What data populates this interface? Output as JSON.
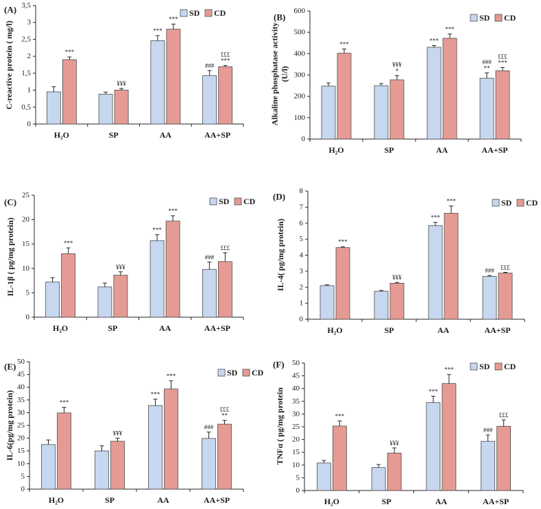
{
  "colors": {
    "sd": "#c6d7ef",
    "cd": "#e59b94",
    "stroke": "#4a4a4a"
  },
  "legend": {
    "sd": "SD",
    "cd": "CD"
  },
  "chart_data": [
    {
      "type": "bar",
      "panel": "(A)",
      "ylabel": "C-reactive protein ( mg/l)",
      "categories": [
        "H₂O",
        "SP",
        "AA",
        "AA+SP"
      ],
      "ylim": [
        0,
        3.5
      ],
      "yticks": [
        "0",
        "0,5",
        "1",
        "1,5",
        "2",
        "2,5",
        "3",
        "3,5"
      ],
      "series": [
        {
          "name": "SD",
          "values": [
            0.95,
            0.88,
            2.46,
            1.43
          ],
          "errors": [
            0.15,
            0.06,
            0.15,
            0.15
          ],
          "sig": [
            "",
            "",
            "***",
            "###"
          ]
        },
        {
          "name": "CD",
          "values": [
            1.9,
            1.0,
            2.8,
            1.69
          ],
          "errors": [
            0.08,
            0.05,
            0.15,
            0.04
          ],
          "sig": [
            "***",
            "¥¥¥",
            "***",
            "£££\n***"
          ]
        }
      ]
    },
    {
      "type": "bar",
      "panel": "(B)",
      "ylabel": "Alkaline phosphatase activity\n(U/l)",
      "categories": [
        "H₂O",
        "SP",
        "AA",
        "AA+SP"
      ],
      "ylim": [
        0,
        600
      ],
      "yticks": [
        "0",
        "100",
        "200",
        "300",
        "400",
        "500",
        "600"
      ],
      "series": [
        {
          "name": "SD",
          "values": [
            248,
            250,
            430,
            285
          ],
          "errors": [
            15,
            10,
            8,
            25
          ],
          "sig": [
            "",
            "",
            "***",
            "###\n**"
          ]
        },
        {
          "name": "CD",
          "values": [
            402,
            277,
            472,
            320
          ],
          "errors": [
            20,
            20,
            20,
            15
          ],
          "sig": [
            "***",
            "¥¥¥\n*",
            "***",
            "£££\n***"
          ]
        }
      ]
    },
    {
      "type": "bar",
      "panel": "(C)",
      "ylabel": "IL-1β ( pg/mg protein)",
      "categories": [
        "H₂O",
        "SP",
        "AA",
        "AA+SP"
      ],
      "ylim": [
        0,
        25
      ],
      "yticks": [
        "0",
        "5",
        "10",
        "15",
        "20",
        "25"
      ],
      "series": [
        {
          "name": "SD",
          "values": [
            7.2,
            6.2,
            15.7,
            9.8
          ],
          "errors": [
            0.9,
            0.8,
            1.2,
            1.5
          ],
          "sig": [
            "",
            "",
            "***",
            "###"
          ]
        },
        {
          "name": "CD",
          "values": [
            13.0,
            8.6,
            19.7,
            11.4
          ],
          "errors": [
            1.2,
            0.7,
            1.1,
            1.8
          ],
          "sig": [
            "***",
            "¥¥¥",
            "***",
            "£££"
          ]
        }
      ]
    },
    {
      "type": "bar",
      "panel": "(D)",
      "ylabel": "IL-4( pg/mg protein)",
      "categories": [
        "H₂O",
        "SP",
        "AA",
        "AA+SP"
      ],
      "ylim": [
        0,
        8
      ],
      "yticks": [
        "0",
        "1",
        "2",
        "3",
        "4",
        "5",
        "6",
        "7",
        "8"
      ],
      "series": [
        {
          "name": "SD",
          "values": [
            2.1,
            1.75,
            5.85,
            2.68
          ],
          "errors": [
            0.05,
            0.05,
            0.2,
            0.05
          ],
          "sig": [
            "",
            "",
            "***",
            "###"
          ]
        },
        {
          "name": "CD",
          "values": [
            4.48,
            2.25,
            6.62,
            2.88
          ],
          "errors": [
            0.05,
            0.05,
            0.45,
            0.05
          ],
          "sig": [
            "***",
            "¥¥¥",
            "***",
            "£££"
          ]
        }
      ]
    },
    {
      "type": "bar",
      "panel": "(E)",
      "ylabel": "IL-6(pg/mg protein)",
      "categories": [
        "H₂O",
        "SP",
        "AA",
        "AA+SP"
      ],
      "ylim": [
        0,
        50
      ],
      "yticks": [
        "0",
        "5",
        "10",
        "15",
        "20",
        "25",
        "30",
        "35",
        "40",
        "45",
        "50"
      ],
      "series": [
        {
          "name": "SD",
          "values": [
            17.5,
            15.0,
            32.8,
            19.9
          ],
          "errors": [
            1.8,
            2.0,
            2.5,
            2.5
          ],
          "sig": [
            "",
            "",
            "***",
            "###"
          ]
        },
        {
          "name": "CD",
          "values": [
            29.9,
            18.8,
            39.3,
            25.5
          ],
          "errors": [
            2.2,
            1.2,
            3.2,
            1.5
          ],
          "sig": [
            "***",
            "¥¥¥",
            "***",
            "£££\n**"
          ]
        }
      ]
    },
    {
      "type": "bar",
      "panel": "(F)",
      "ylabel": "TNFα ( pg/mg protein",
      "categories": [
        "H₂O",
        "SP",
        "AA",
        "AA+SP"
      ],
      "ylim": [
        0,
        50
      ],
      "yticks": [
        "0",
        "5",
        "10",
        "15",
        "20",
        "25",
        "30",
        "35",
        "40",
        "45",
        "50"
      ],
      "series": [
        {
          "name": "SD",
          "values": [
            10.8,
            9.0,
            34.5,
            19.3
          ],
          "errors": [
            1.0,
            1.2,
            2.5,
            2.5
          ],
          "sig": [
            "",
            "",
            "***",
            "###"
          ]
        },
        {
          "name": "CD",
          "values": [
            25.3,
            14.7,
            42.0,
            25.2
          ],
          "errors": [
            2.0,
            2.0,
            3.5,
            2.5
          ],
          "sig": [
            "***",
            "¥¥¥",
            "***",
            "£££"
          ]
        }
      ]
    }
  ]
}
